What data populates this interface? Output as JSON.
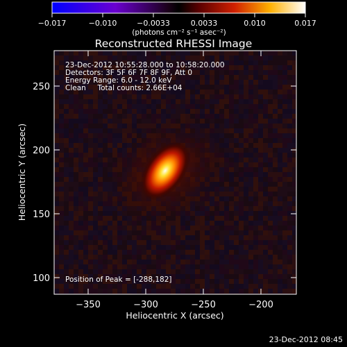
{
  "colorbar": {
    "tick_labels": [
      "−0.017",
      "−0.010",
      "−0.0033",
      "0.0033",
      "0.010",
      "0.017"
    ],
    "units": "(photons cm⁻² s⁻¹ asec⁻²)",
    "min": -0.017,
    "max": 0.017
  },
  "plot": {
    "title": "Reconstructed RHESSI Image",
    "info_lines": [
      "23-Dec-2012 10:55:28.000 to 10:58:20.000",
      "Detectors: 3F 5F 6F 7F 8F 9F, Att 0",
      "Energy Range: 6.0 - 12.0 keV",
      "Clean     Total counts: 2.66E+04"
    ],
    "peak_text": "Position of Peak = [-288,182]",
    "x_label": "Heliocentric X (arcsec)",
    "y_label": "Heliocentric Y (arcsec)",
    "x_ticks": [
      "−350",
      "−300",
      "−250",
      "−200"
    ],
    "y_ticks": [
      "100",
      "150",
      "200",
      "250"
    ],
    "x_range": [
      -378,
      -186
    ],
    "y_range": [
      86,
      278
    ],
    "peak": [
      -288,
      182
    ]
  },
  "footer": {
    "timestamp": "23-Dec-2012 08:45"
  }
}
